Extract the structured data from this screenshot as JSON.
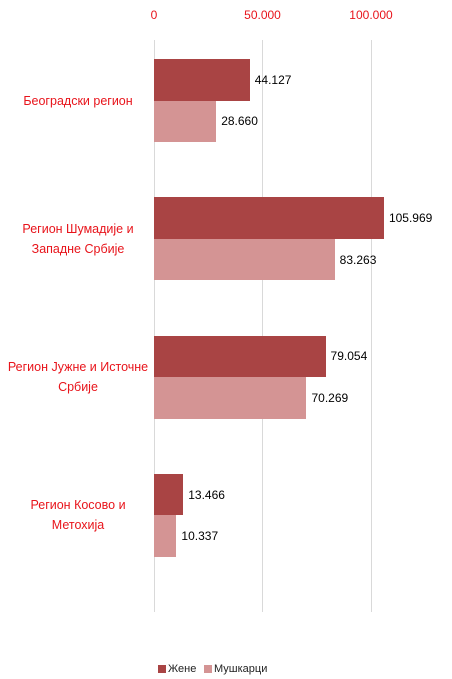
{
  "chart_data": {
    "type": "bar",
    "orientation": "horizontal",
    "categories": [
      "Београдски регион",
      "Регион Шумадије и\nЗападне Србије",
      "Регион Јужне и Источне\nСрбије",
      "Регион Косово и\nМетохија"
    ],
    "series": [
      {
        "name": "Жене",
        "color": "#a94444",
        "values": [
          44127,
          105969,
          79054,
          13466
        ],
        "value_labels": [
          "44.127",
          "105.969",
          "79.054",
          "13.466"
        ]
      },
      {
        "name": "Мушкарци",
        "color": "#d49494",
        "values": [
          28660,
          83263,
          70269,
          10337
        ],
        "value_labels": [
          "28.660",
          "83.263",
          "70.269",
          "10.337"
        ]
      }
    ],
    "xlim": [
      0,
      120000
    ],
    "xticks": [
      0,
      {
        "value": 50000,
        "label": "50.000"
      },
      {
        "value": 100000,
        "label": "100.000"
      }
    ],
    "grid": true,
    "legend": "bottom"
  }
}
